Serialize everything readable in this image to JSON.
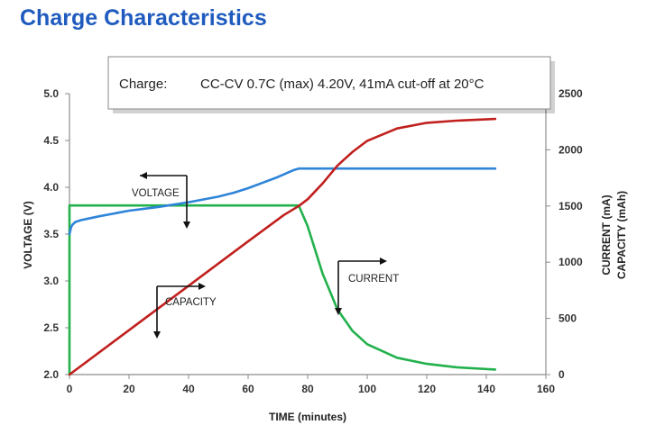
{
  "page": {
    "title": "Charge Characteristics"
  },
  "info_box": {
    "label": "Charge:",
    "text": "CC-CV 0.7C (max) 4.20V, 41mA cut-off at 20°C"
  },
  "colors": {
    "title": "#1f5bbf",
    "voltage": "#2e84d8",
    "current": "#22b14c",
    "capacity": "#c0201e"
  },
  "chart_data": {
    "type": "line",
    "xlabel": "TIME (minutes)",
    "ylabel_left": "VOLTAGE (V)",
    "ylabel_right_1": "CURRENT (mA)",
    "ylabel_right_2": "CAPACITY (mAh)",
    "xlim": [
      0,
      160
    ],
    "ylim_left": [
      2.0,
      5.0
    ],
    "ylim_right": [
      0,
      2500
    ],
    "x_ticks": [
      0,
      20,
      40,
      60,
      80,
      100,
      120,
      140,
      160
    ],
    "y_left_ticks": [
      "2.0",
      "2.5",
      "3.0",
      "3.5",
      "4.0",
      "4.5",
      "5.0"
    ],
    "y_right_ticks": [
      "0",
      "500",
      "1000",
      "1500",
      "2000",
      "2500"
    ],
    "grid": false,
    "annotations": {
      "voltage": "VOLTAGE",
      "current": "CURRENT",
      "capacity": "CAPACITY"
    },
    "series": [
      {
        "key": "voltage",
        "axis": "left",
        "x": [
          0,
          0.5,
          1,
          2,
          4,
          7,
          10,
          15,
          20,
          30,
          40,
          50,
          55,
          60,
          65,
          70,
          75,
          77,
          90,
          110,
          130,
          143
        ],
        "y": [
          3.5,
          3.57,
          3.6,
          3.63,
          3.65,
          3.67,
          3.69,
          3.72,
          3.75,
          3.79,
          3.84,
          3.9,
          3.94,
          3.99,
          4.05,
          4.11,
          4.18,
          4.2,
          4.2,
          4.2,
          4.2,
          4.2
        ]
      },
      {
        "key": "current",
        "axis": "right",
        "x": [
          0,
          0,
          77,
          80,
          85,
          90,
          95,
          100,
          110,
          120,
          130,
          143
        ],
        "y": [
          0,
          1505,
          1505,
          1320,
          900,
          580,
          390,
          270,
          150,
          95,
          65,
          45
        ]
      },
      {
        "key": "capacity",
        "axis": "right",
        "x": [
          0,
          20,
          40,
          60,
          72,
          77,
          80,
          85,
          90,
          95,
          100,
          110,
          120,
          130,
          143
        ],
        "y": [
          0,
          395,
          790,
          1185,
          1420,
          1500,
          1560,
          1700,
          1860,
          1980,
          2080,
          2190,
          2240,
          2260,
          2275
        ]
      }
    ]
  }
}
